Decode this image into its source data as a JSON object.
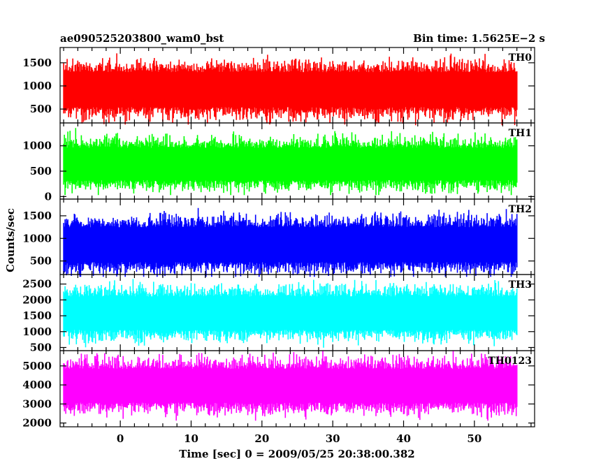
{
  "header": {
    "title": "ae090525203800_wam0_bst",
    "bin_time": "Bin time: 1.5625E−2 s"
  },
  "chart_data": {
    "type": "line",
    "xlabel": "Time [sec] 0 = 2009/05/25 20:38:00.382",
    "ylabel": "Counts/sec",
    "xlim": [
      -8.5,
      58.5
    ],
    "x_ticks": [
      0,
      10,
      20,
      30,
      40,
      50
    ],
    "x_range_data": [
      -8,
      56
    ],
    "panels": [
      {
        "name": "TH0",
        "color": "#ff0000",
        "ylim": [
          200,
          1830
        ],
        "y_ticks": [
          500,
          1000,
          1500
        ],
        "mean": 920,
        "min": 150,
        "max": 1820
      },
      {
        "name": "TH1",
        "color": "#00ff00",
        "ylim": [
          -50,
          1450
        ],
        "y_ticks": [
          0,
          500,
          1000
        ],
        "mean": 640,
        "min": 30,
        "max": 1440
      },
      {
        "name": "TH2",
        "color": "#0000ff",
        "ylim": [
          200,
          1870
        ],
        "y_ticks": [
          500,
          1000,
          1500
        ],
        "mean": 860,
        "min": 150,
        "max": 1860
      },
      {
        "name": "TH3",
        "color": "#00ffff",
        "ylim": [
          400,
          2800
        ],
        "y_ticks": [
          500,
          1000,
          1500,
          2000,
          2500
        ],
        "mean": 1580,
        "min": 450,
        "max": 2780
      },
      {
        "name": "TH0123",
        "color": "#ff00ff",
        "ylim": [
          1800,
          5800
        ],
        "y_ticks": [
          2000,
          3000,
          4000,
          5000
        ],
        "mean": 3950,
        "min": 1850,
        "max": 5780
      }
    ]
  }
}
